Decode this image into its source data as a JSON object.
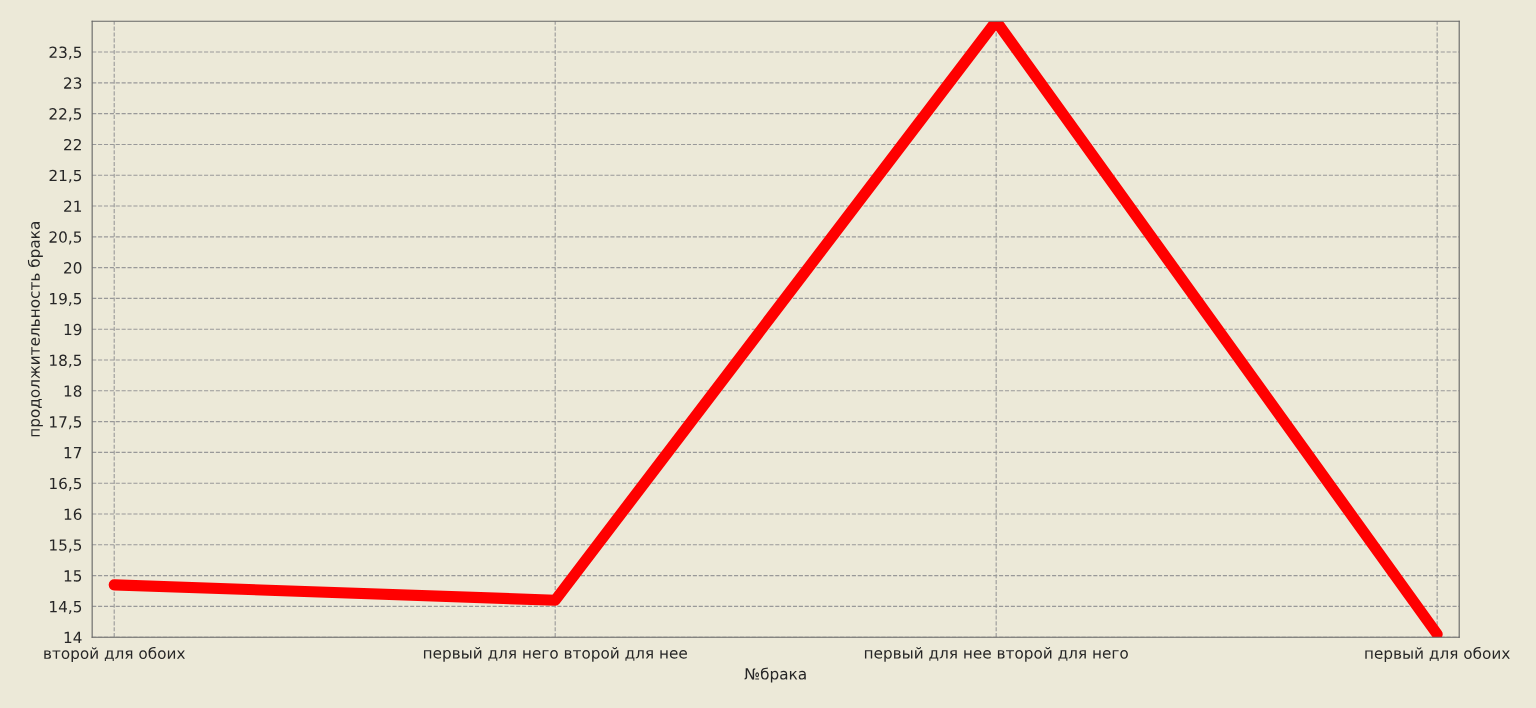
{
  "chart_data": {
    "type": "line",
    "xlabel": "№брака",
    "ylabel": "продолжительность брака",
    "categories": [
      "второй для обоих",
      "первый для него второй для нее",
      "первый для нее второй для него",
      "первый для обоих"
    ],
    "series": [
      {
        "color": "#ff0000",
        "values": [
          14.85,
          14.6,
          24,
          14.05
        ]
      }
    ],
    "ylim": [
      14,
      24
    ],
    "yticks": [
      14,
      {
        "value": 14.5,
        "label": "14,5"
      },
      15,
      {
        "value": 15.5,
        "label": "15,5"
      },
      16,
      {
        "value": 16.5,
        "label": "16,5"
      },
      17,
      {
        "value": 17.5,
        "label": "17,5"
      },
      18,
      {
        "value": 18.5,
        "label": "18,5"
      },
      19,
      {
        "value": 19.5,
        "label": "19,5"
      },
      20,
      {
        "value": 20.5,
        "label": "20,5"
      },
      21,
      {
        "value": 21.5,
        "label": "21,5"
      },
      22,
      {
        "value": 22.5,
        "label": "22,5"
      },
      23,
      {
        "value": 23.5,
        "label": "23,5"
      }
    ],
    "grid": true,
    "legend": false,
    "marker": "none",
    "line_style": "solid"
  }
}
